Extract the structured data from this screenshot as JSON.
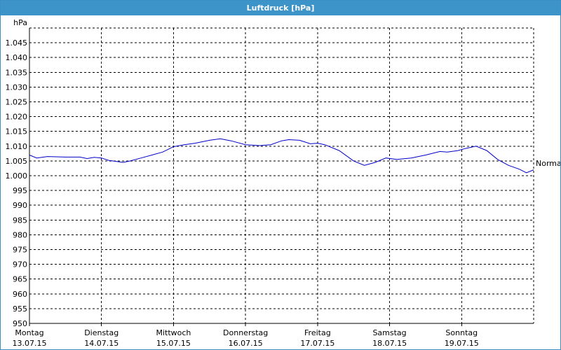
{
  "window": {
    "title": "Luftdruck [hPa]"
  },
  "chart_data": {
    "type": "line",
    "title": "Luftdruck [hPa]",
    "ylabel": "hPa",
    "xlabel": "",
    "ylim": [
      950,
      1050
    ],
    "yticks": [
      950,
      955,
      960,
      965,
      970,
      975,
      980,
      985,
      990,
      995,
      1000,
      1005,
      1010,
      1015,
      1020,
      1025,
      1030,
      1035,
      1040,
      1045
    ],
    "ytick_labels": [
      "950",
      "955",
      "960",
      "965",
      "970",
      "975",
      "980",
      "985",
      "990",
      "995",
      "1.000",
      "1.005",
      "1.010",
      "1.015",
      "1.020",
      "1.025",
      "1.030",
      "1.035",
      "1.040",
      "1.045"
    ],
    "xlim": [
      0,
      7
    ],
    "days": [
      {
        "x": 0,
        "weekday": "Montag",
        "date": "13.07.15"
      },
      {
        "x": 1,
        "weekday": "Dienstag",
        "date": "14.07.15"
      },
      {
        "x": 2,
        "weekday": "Mittwoch",
        "date": "15.07.15"
      },
      {
        "x": 3,
        "weekday": "Donnerstag",
        "date": "16.07.15"
      },
      {
        "x": 4,
        "weekday": "Freitag",
        "date": "17.07.15"
      },
      {
        "x": 5,
        "weekday": "Samstag",
        "date": "18.07.15"
      },
      {
        "x": 6,
        "weekday": "Sonntag",
        "date": "19.07.15"
      }
    ],
    "grid": true,
    "series": [
      {
        "color": "#0000c8",
        "x": [
          0,
          0.1,
          0.25,
          0.5,
          0.7,
          0.8,
          0.9,
          1.0,
          1.1,
          1.3,
          1.4,
          1.55,
          1.7,
          1.85,
          2.0,
          2.15,
          2.3,
          2.5,
          2.65,
          2.8,
          3.0,
          3.2,
          3.35,
          3.5,
          3.6,
          3.75,
          3.9,
          4.0,
          4.1,
          4.3,
          4.5,
          4.65,
          4.8,
          4.95,
          5.1,
          5.3,
          5.5,
          5.7,
          5.8,
          5.95,
          6.05,
          6.2,
          6.35,
          6.5,
          6.65,
          6.8,
          6.9,
          7.0
        ],
        "y": [
          1007,
          1006,
          1006.5,
          1006.3,
          1006.3,
          1005.8,
          1006.2,
          1006,
          1005.2,
          1004.5,
          1005,
          1006,
          1007,
          1008,
          1009.8,
          1010.5,
          1011,
          1012,
          1012.5,
          1011.8,
          1010.5,
          1010.2,
          1010.5,
          1011.8,
          1012.2,
          1012,
          1010.8,
          1011,
          1010.5,
          1008.5,
          1005,
          1003.5,
          1004.5,
          1006,
          1005.5,
          1006,
          1007,
          1008.2,
          1008,
          1008.5,
          1009.2,
          1010,
          1008.5,
          1005.5,
          1003.5,
          1002.2,
          1001,
          1002
        ]
      }
    ],
    "annotation": {
      "text": "Normal",
      "y": 1004.3
    }
  }
}
